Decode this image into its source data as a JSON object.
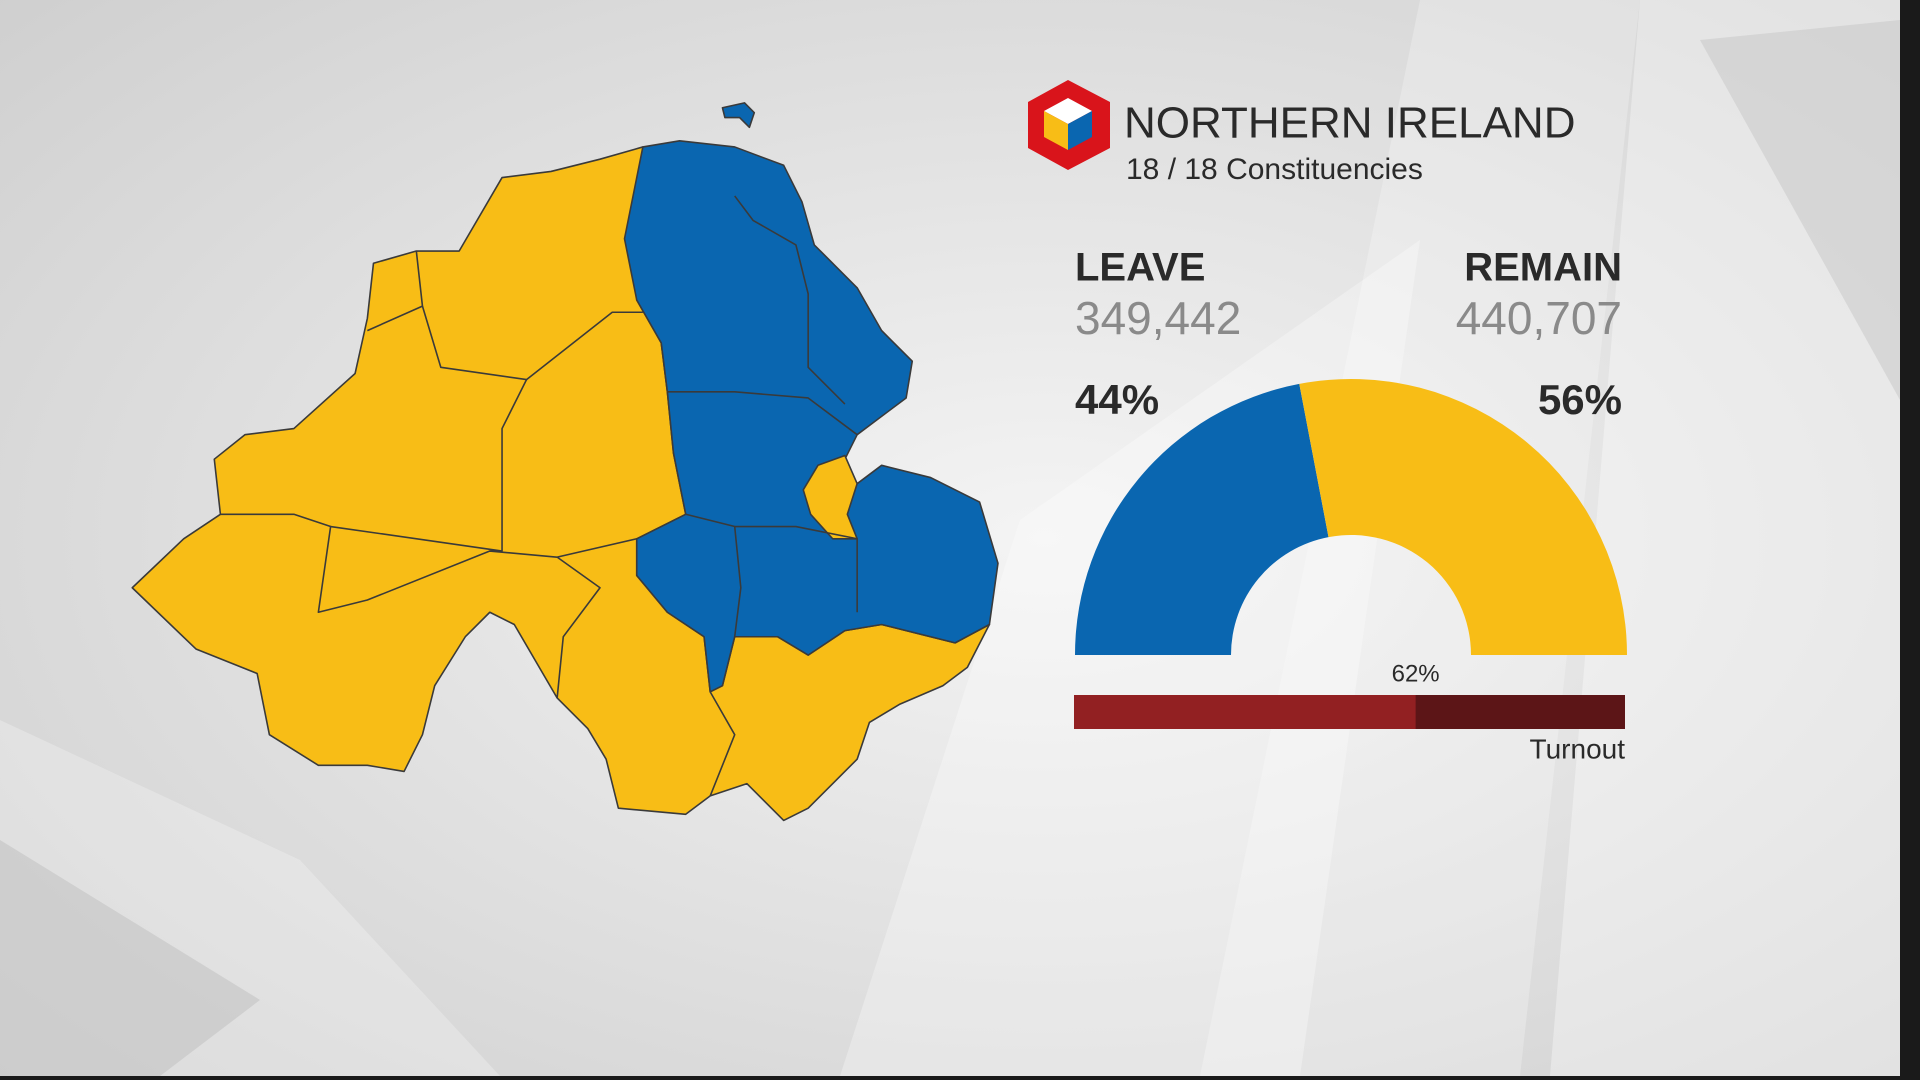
{
  "header": {
    "title": "NORTHERN IRELAND",
    "subtitle": "18 / 18 Constituencies"
  },
  "chart_data": {
    "type": "semi-donut",
    "categories": [
      "LEAVE",
      "REMAIN"
    ],
    "colors": [
      "#0a66b0",
      "#f8bd16"
    ],
    "votes": [
      "349,442",
      "440,707"
    ],
    "values": [
      44,
      56
    ],
    "value_labels": [
      "44%",
      "56%"
    ]
  },
  "turnout": {
    "label": "Turnout",
    "value": 62,
    "value_label": "62%",
    "xlim": [
      0,
      100
    ],
    "color": "#922022",
    "track_color": "#5c1517"
  }
}
